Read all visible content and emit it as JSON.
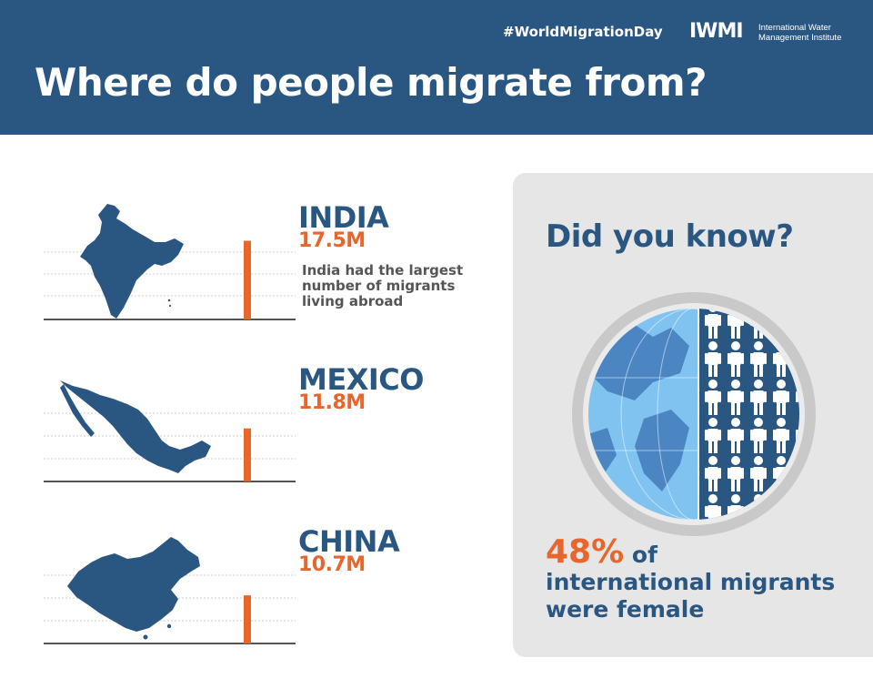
{
  "header": {
    "hashtag": "#WorldMigrationDay",
    "logo_mark": "IWMI",
    "logo_text": "International Water Management Institute",
    "title": "Where do people migrate from?"
  },
  "colors": {
    "header_bg": "#2a5682",
    "accent": "#e8652c",
    "map_fill": "#2a5682",
    "panel_bg": "#e6e6e6"
  },
  "chart_data": {
    "type": "bar",
    "title": "",
    "unit": "M",
    "categories": [
      "INDIA",
      "MEXICO",
      "CHINA"
    ],
    "values": [
      17.5,
      11.8,
      10.7
    ],
    "value_labels": [
      "17.5M",
      "11.8M",
      "10.7M"
    ],
    "grid": true,
    "notes": [
      "India had the largest number of migrants living abroad",
      "",
      ""
    ]
  },
  "did_you_know": {
    "title": "Did you know?",
    "percent": "48%",
    "text_of": "of",
    "text_rest": "international migrants were female",
    "icons": {
      "globe": "globe-icon",
      "people": "people-icon"
    }
  }
}
